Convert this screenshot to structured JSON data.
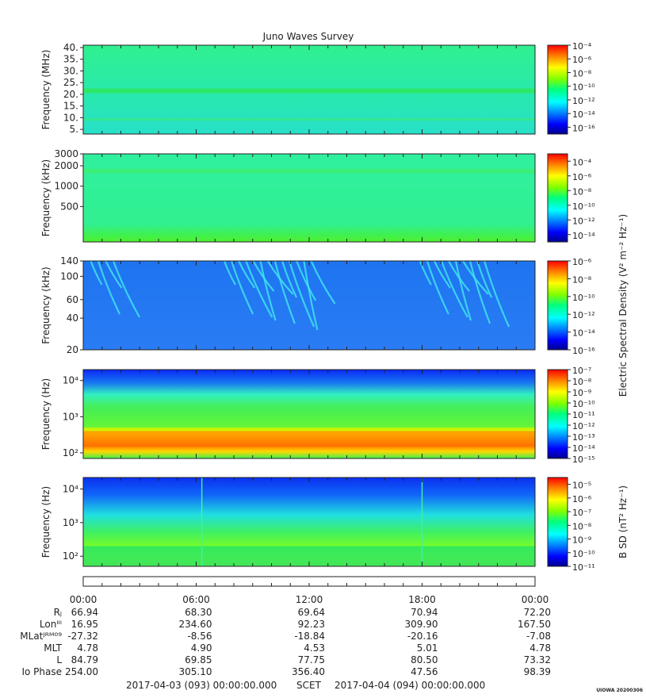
{
  "chart_data": {
    "type": "heatmap",
    "title": "Juno Waves Survey",
    "panels": [
      {
        "id": "hfr-high",
        "ylabel": "Frequency (MHz)",
        "yscale": "linear",
        "ylim": [
          3,
          41
        ],
        "yticks": [
          5,
          10,
          15,
          20,
          25,
          30,
          35,
          40
        ],
        "ytick_labels": [
          "5.",
          "10.",
          "15.",
          "20.",
          "25.",
          "30.",
          "35.",
          "40."
        ],
        "colorbar": {
          "label": "",
          "log_range": [
            -17,
            -4
          ],
          "tick_exponents": [
            -4,
            -6,
            -8,
            -10,
            -12,
            -14,
            -16
          ]
        },
        "features": [
          {
            "kind": "band",
            "y": [
              20.5,
              22.5
            ],
            "intensity": "high"
          },
          {
            "kind": "band",
            "y": [
              8.8,
              9.6
            ],
            "intensity": "medium"
          }
        ]
      },
      {
        "id": "hfr-low",
        "ylabel": "Frequency (kHz)",
        "yscale": "log",
        "ylim": [
          150,
          3000
        ],
        "yticks": [
          500,
          1000,
          2000,
          3000
        ],
        "ytick_labels": [
          "500",
          "1000",
          "2000",
          "3000"
        ],
        "colorbar": {
          "label": "",
          "log_range": [
            -15,
            -3
          ],
          "tick_exponents": [
            -4,
            -6,
            -8,
            -10,
            -12,
            -14
          ]
        },
        "features": [
          {
            "kind": "band",
            "y": [
              1550,
              1800
            ],
            "intensity": "medium"
          },
          {
            "kind": "band",
            "y": [
              1000,
              1150
            ],
            "intensity": "low"
          }
        ]
      },
      {
        "id": "lfr-high",
        "ylabel": "Frequency (kHz)",
        "yscale": "log",
        "ylim": [
          20,
          140
        ],
        "yticks": [
          20,
          40,
          60,
          100,
          140
        ],
        "ytick_labels": [
          "20",
          "40",
          "60",
          "100",
          "140"
        ],
        "colorbar": {
          "label": "Electric Spectral Density (V² m⁻² Hz⁻¹)",
          "log_range": [
            -16,
            -6
          ],
          "tick_exponents": [
            -6,
            -8,
            -10,
            -12,
            -14,
            -16
          ]
        },
        "features": [
          {
            "kind": "emission-streaks",
            "t": [
              0.2,
              1.8
            ]
          },
          {
            "kind": "emission-streaks",
            "t": [
              7.3,
              12.3
            ]
          },
          {
            "kind": "emission-streaks",
            "t": [
              17.7,
              21.5
            ]
          }
        ]
      },
      {
        "id": "lfr-low",
        "ylabel": "Frequency (Hz)",
        "yscale": "log",
        "ylim": [
          70,
          20000
        ],
        "yticks": [
          100,
          1000,
          10000
        ],
        "ytick_labels": [
          "10²",
          "10³",
          "10⁴"
        ],
        "colorbar": {
          "label": "",
          "log_range": [
            -15,
            -7
          ],
          "tick_exponents": [
            -7,
            -8,
            -9,
            -10,
            -11,
            -12,
            -13,
            -14,
            -15
          ]
        },
        "features": [
          {
            "kind": "band",
            "y": [
              150,
              400
            ],
            "intensity": "very-high"
          },
          {
            "kind": "band",
            "y": [
              500,
              2000
            ],
            "intensity": "medium"
          }
        ]
      },
      {
        "id": "magnetic",
        "ylabel": "Frequency (Hz)",
        "yscale": "log",
        "ylim": [
          50,
          22000
        ],
        "yticks": [
          100,
          1000,
          10000
        ],
        "ytick_labels": [
          "10²",
          "10³",
          "10⁴"
        ],
        "colorbar": {
          "label": "B SD (nT² Hz⁻¹)",
          "log_range": [
            -11,
            -4.5
          ],
          "tick_exponents": [
            -5,
            -6,
            -7,
            -8,
            -9,
            -10,
            -11
          ]
        },
        "features": [
          {
            "kind": "band",
            "y": [
              50,
              200
            ],
            "intensity": "high"
          },
          {
            "kind": "spike",
            "t": 6.3
          },
          {
            "kind": "spike",
            "t": 18.0
          }
        ]
      }
    ],
    "x": {
      "label": "SCET",
      "tick_labels": [
        "00:00",
        "06:00",
        "12:00",
        "18:00",
        "00:00"
      ],
      "tick_hours": [
        0,
        6,
        12,
        18,
        24
      ],
      "xlim_hours": [
        0,
        24
      ]
    },
    "ephemeris": {
      "row_labels": [
        "Rⱼ",
        "Lonᴵᴵᴵ",
        "MLatᴶᴿᴹ⁰⁹",
        "MLT",
        "L",
        "Io Phase"
      ],
      "rows": [
        [
          "66.94",
          "68.30",
          "69.64",
          "70.94",
          "72.20"
        ],
        [
          "16.95",
          "234.60",
          "92.23",
          "309.90",
          "167.50"
        ],
        [
          "-27.32",
          "-8.56",
          "-18.84",
          "-20.16",
          "-7.08"
        ],
        [
          "4.78",
          "4.90",
          "4.53",
          "5.01",
          "4.78"
        ],
        [
          "84.79",
          "69.85",
          "77.75",
          "80.50",
          "73.32"
        ],
        [
          "254.00",
          "305.10",
          "356.40",
          "47.56",
          "98.39"
        ]
      ]
    },
    "footer": {
      "start": "2017-04-03 (093) 00:00:00.000",
      "scet": "SCET",
      "end": "2017-04-04 (094) 00:00:00.000",
      "stamp": "UIOWA 20200306"
    }
  }
}
